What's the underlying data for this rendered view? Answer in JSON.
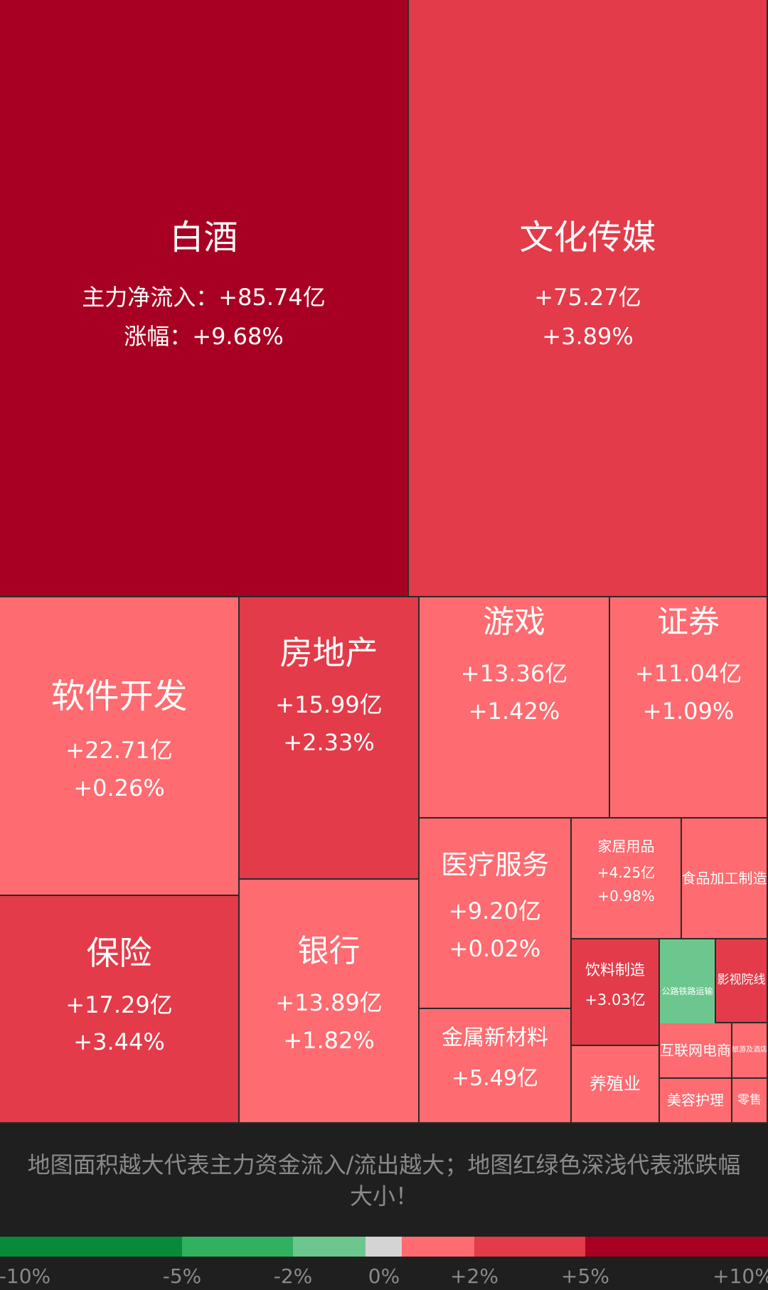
{
  "sectors": [
    {
      "name": "白酒",
      "inflow": "主力净流入：+85.74亿",
      "change": "涨幅：+9.68%",
      "color": "#a80022"
    },
    {
      "name": "文化传媒",
      "inflow": "+75.27亿",
      "change": "+3.89%",
      "color": "#e33b49"
    },
    {
      "name": "软件开发",
      "inflow": "+22.71亿",
      "change": "+0.26%",
      "color": "#fe6b70"
    },
    {
      "name": "房地产",
      "inflow": "+15.99亿",
      "change": "+2.33%",
      "color": "#e33b49"
    },
    {
      "name": "游戏",
      "inflow": "+13.36亿",
      "change": "+1.42%",
      "color": "#fe6b70"
    },
    {
      "name": "证券",
      "inflow": "+11.04亿",
      "change": "+1.09%",
      "color": "#fe6b70"
    },
    {
      "name": "保险",
      "inflow": "+17.29亿",
      "change": "+3.44%",
      "color": "#e33b49"
    },
    {
      "name": "银行",
      "inflow": "+13.89亿",
      "change": "+1.82%",
      "color": "#fe6b70"
    },
    {
      "name": "医疗服务",
      "inflow": "+9.20亿",
      "change": "+0.02%",
      "color": "#fe6b70"
    },
    {
      "name": "家居用品",
      "inflow": "+4.25亿",
      "change": "+0.98%",
      "color": "#fe6b70"
    },
    {
      "name": "食品加工制造",
      "inflow": "",
      "change": "",
      "color": "#fe6b70"
    },
    {
      "name": "饮料制造",
      "inflow": "+3.03亿",
      "change": "",
      "color": "#e33b49"
    },
    {
      "name": "公路铁路运输",
      "inflow": "",
      "change": "",
      "color": "#6cc78f"
    },
    {
      "name": "影视院线",
      "inflow": "",
      "change": "",
      "color": "#e33b49"
    },
    {
      "name": "金属新材料",
      "inflow": "+5.49亿",
      "change": "",
      "color": "#fe6b70"
    },
    {
      "name": "养殖业",
      "inflow": "",
      "change": "",
      "color": "#fe6b70"
    },
    {
      "name": "互联网电商",
      "inflow": "",
      "change": "",
      "color": "#fe6b70"
    },
    {
      "name": "旅游及酒店",
      "inflow": "",
      "change": "",
      "color": "#fe6b70"
    },
    {
      "name": "美容护理",
      "inflow": "",
      "change": "",
      "color": "#fe6b70"
    },
    {
      "name": "零售",
      "inflow": "",
      "change": "",
      "color": "#fe6b70"
    }
  ],
  "info_text": "地图面积越大代表主力资金流入/流出越大；地图红绿色深浅代表涨跌幅大小！",
  "scale": {
    "labels": [
      "-10%",
      "-5%",
      "-2%",
      "0%",
      "+2%",
      "+5%",
      "+10%"
    ],
    "colors": [
      "#078a3c",
      "#30b160",
      "#6cc78f",
      "#d4d4d4",
      "#fe6b70",
      "#e33b49",
      "#a80022"
    ]
  }
}
